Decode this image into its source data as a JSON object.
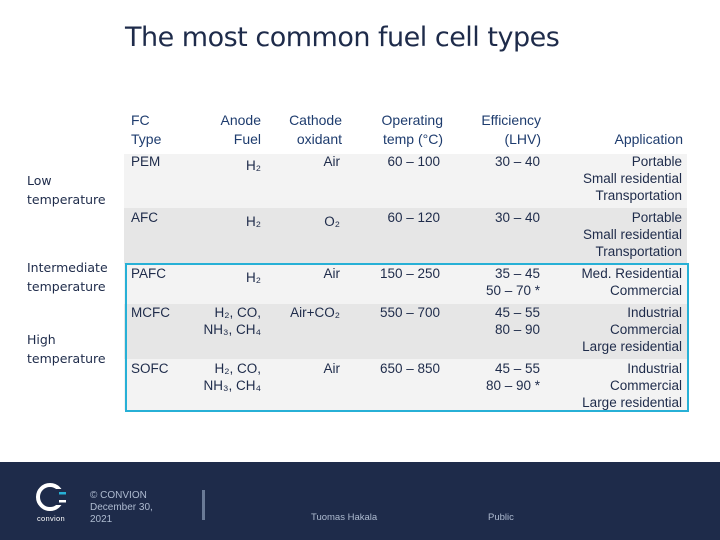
{
  "title": "The most common fuel cell types",
  "headers": {
    "type": [
      "FC",
      "Type"
    ],
    "anode": [
      "Anode",
      "Fuel"
    ],
    "cathode": [
      "Cathode",
      "oxidant"
    ],
    "temp": [
      "Operating",
      "temp (°C)"
    ],
    "eff": [
      "Efficiency",
      "(LHV)"
    ],
    "app": "Application"
  },
  "rows": [
    {
      "type": "PEM",
      "anode": [
        "H₂"
      ],
      "cathode": "Air",
      "temp": "60 – 100",
      "eff": [
        "30 – 40"
      ],
      "app": [
        "Portable",
        "Small residential",
        "Transportation"
      ]
    },
    {
      "type": "AFC",
      "anode": [
        "H₂"
      ],
      "cathode": "O₂",
      "temp": "60 – 120",
      "eff": [
        "30 – 40"
      ],
      "app": [
        "Portable",
        "Small residential",
        "Transportation"
      ]
    },
    {
      "type": "PAFC",
      "anode": [
        "H₂"
      ],
      "cathode": "Air",
      "temp": "150 – 250",
      "eff": [
        "35 – 45",
        "50 – 70 *"
      ],
      "app": [
        "Med. Residential",
        "Commercial"
      ]
    },
    {
      "type": "MCFC",
      "anode": [
        "H₂, CO,",
        "NH₃, CH₄"
      ],
      "cathode": "Air+CO₂",
      "temp": "550 – 700",
      "eff": [
        "45 – 55",
        "80 – 90"
      ],
      "app": [
        "Industrial",
        "Commercial",
        "Large residential"
      ]
    },
    {
      "type": "SOFC",
      "anode": [
        "H₂, CO,",
        "NH₃, CH₄"
      ],
      "cathode": "Air",
      "temp": "650 – 850",
      "eff": [
        "45 – 55",
        "80 – 90 *"
      ],
      "app": [
        "Industrial",
        "Commercial",
        "Large residential"
      ]
    }
  ],
  "side_labels": {
    "low": [
      "Low",
      "temperature"
    ],
    "intermediate": [
      "Intermediate",
      "temperature"
    ],
    "high": [
      "High",
      "temperature"
    ]
  },
  "footer": {
    "logo_text": "convion",
    "copyright": "© CONVION",
    "date_line1": "December 30,",
    "date_line2": "2021",
    "author": "Tuomas Hakala",
    "classification": "Public"
  },
  "colors": {
    "accent": "#27b0d6",
    "navy": "#1e2b4a",
    "row_dark": "#e6e6e6",
    "row_light": "#f3f3f3"
  }
}
